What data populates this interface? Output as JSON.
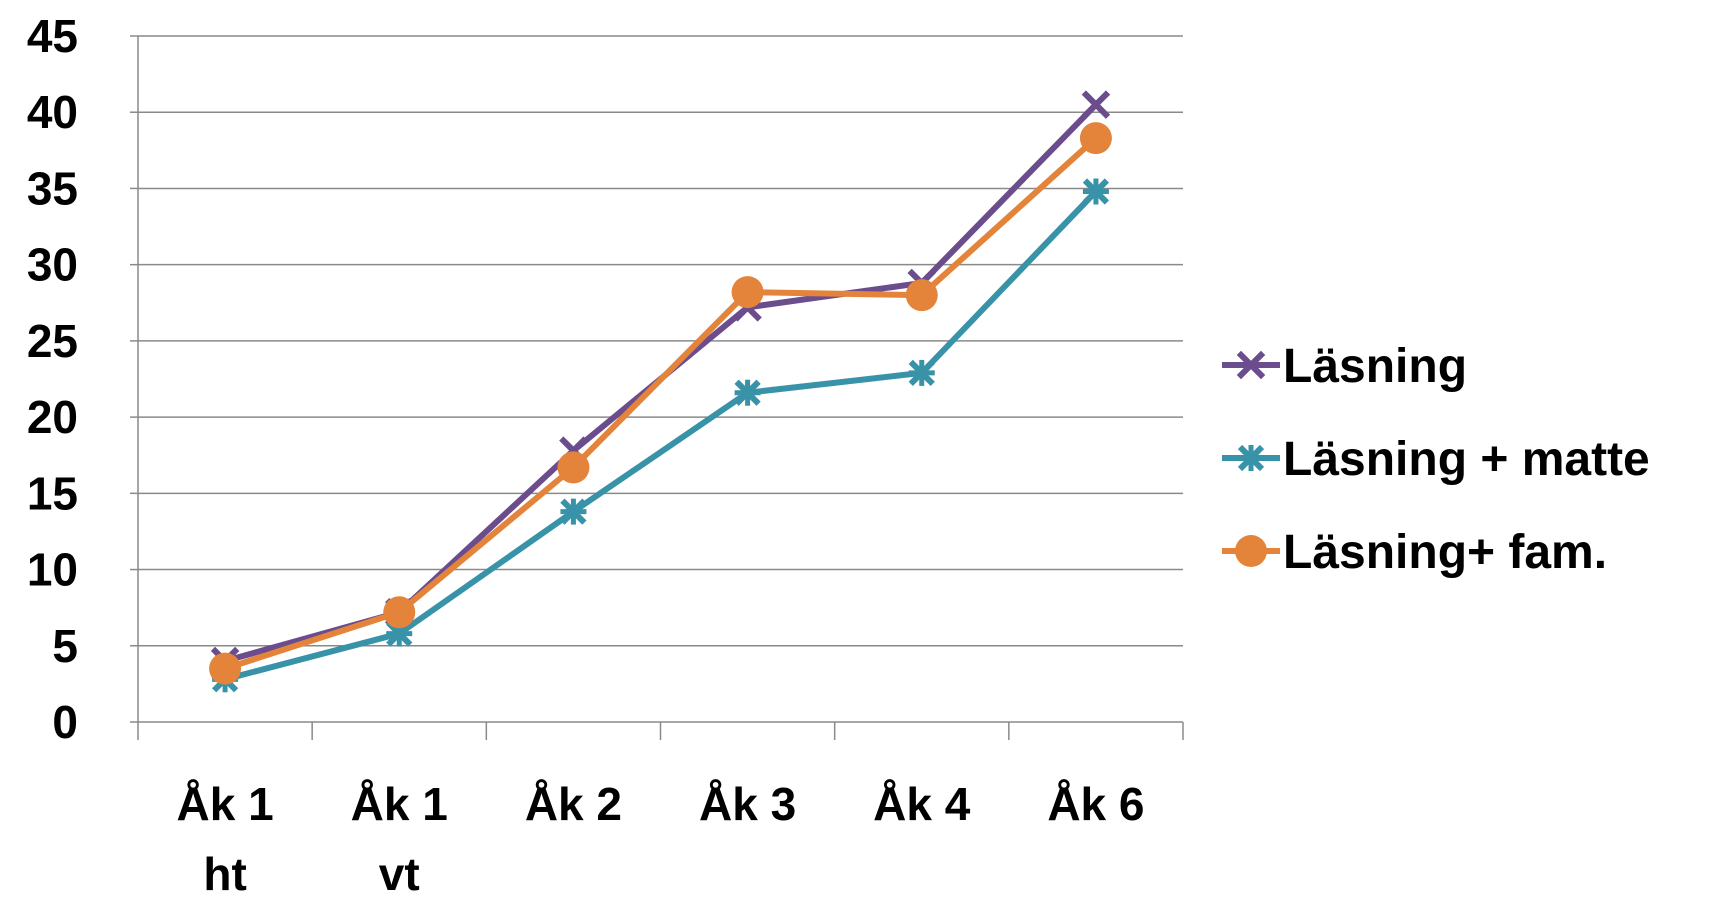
{
  "chart_data": {
    "type": "line",
    "title": "",
    "xlabel": "",
    "ylabel": "",
    "categories": [
      [
        "Åk 1",
        "ht"
      ],
      [
        "Åk 1",
        "vt"
      ],
      [
        "Åk 2"
      ],
      [
        "Åk 3"
      ],
      [
        "Åk 4"
      ],
      [
        "Åk 6"
      ]
    ],
    "ylim": [
      0,
      45
    ],
    "yticks": [
      0,
      5,
      10,
      15,
      20,
      25,
      30,
      35,
      40,
      45
    ],
    "grid": true,
    "legend_position": "right",
    "series": [
      {
        "name": "Läsning",
        "color": "#6B4C8C",
        "marker": "x",
        "values": [
          4.0,
          7.2,
          17.8,
          27.2,
          28.8,
          40.5
        ]
      },
      {
        "name": "Läsning + matte",
        "color": "#3993A8",
        "marker": "asterisk",
        "values": [
          2.8,
          5.8,
          13.8,
          21.6,
          22.9,
          34.8
        ]
      },
      {
        "name": "Läsning+ fam.",
        "color": "#E3843A",
        "marker": "circle",
        "values": [
          3.5,
          7.2,
          16.7,
          28.2,
          28.0,
          38.3
        ]
      }
    ]
  }
}
